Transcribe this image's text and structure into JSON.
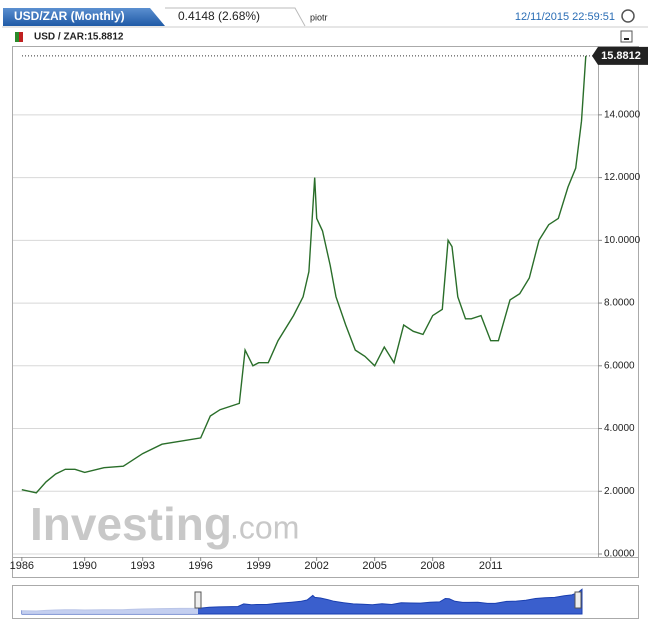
{
  "chart_data": {
    "type": "line",
    "tab_title": "USD/ZAR (Monthly)",
    "change": "0.4148 (2.68%)",
    "user": "piotr",
    "timestamp": "12/11/2015 22:59:51",
    "legend_label": "USD / ZAR:15.8812",
    "last_value": 15.8812,
    "watermark": "Investing",
    "watermark_suffix": ".com",
    "x": [
      1986.75,
      1987.5,
      1988,
      1988.5,
      1989,
      1989.5,
      1990,
      1991,
      1992,
      1993,
      1994,
      1995,
      1996,
      1996.5,
      1997,
      1998,
      1998.3,
      1998.7,
      1999,
      1999.5,
      2000,
      2000.8,
      2001.3,
      2001.6,
      2001.9,
      2002,
      2002.3,
      2002.7,
      2003,
      2003.5,
      2004,
      2004.5,
      2005,
      2005.5,
      2006,
      2006.5,
      2007,
      2007.5,
      2008,
      2008.5,
      2008.8,
      2009,
      2009.3,
      2009.7,
      2010,
      2010.5,
      2011,
      2011.4,
      2012,
      2012.5,
      2013,
      2013.5,
      2014,
      2014.5,
      2015,
      2015.4,
      2015.7,
      2015.92
    ],
    "series": [
      {
        "name": "USD / ZAR",
        "color": "#2a6e2a",
        "values": [
          2.05,
          1.95,
          2.3,
          2.55,
          2.7,
          2.7,
          2.6,
          2.75,
          2.8,
          3.2,
          3.5,
          3.6,
          3.7,
          4.4,
          4.6,
          4.8,
          6.5,
          6.0,
          6.1,
          6.1,
          6.8,
          7.6,
          8.2,
          9.0,
          12.0,
          10.7,
          10.3,
          9.2,
          8.2,
          7.3,
          6.5,
          6.3,
          6.0,
          6.6,
          6.1,
          7.3,
          7.1,
          7.0,
          7.6,
          7.8,
          10.0,
          9.8,
          8.2,
          7.5,
          7.5,
          7.6,
          6.8,
          6.8,
          8.1,
          8.3,
          8.8,
          10.0,
          10.5,
          10.7,
          11.7,
          12.3,
          13.8,
          15.8812
        ]
      }
    ],
    "xlim": [
      1986.5,
      2016.5
    ],
    "xticks": [
      {
        "value": 1986.75,
        "label": "1986"
      },
      1990,
      1993,
      1996,
      1999,
      2002,
      2005,
      2008,
      2011
    ],
    "ylim": [
      0,
      16.1
    ],
    "yticks": [
      {
        "value": 0,
        "label": "0.0000"
      },
      {
        "value": 2,
        "label": "2.0000"
      },
      {
        "value": 4,
        "label": "4.0000"
      },
      {
        "value": 6,
        "label": "6.0000"
      },
      {
        "value": 8,
        "label": "8.0000"
      },
      {
        "value": 10,
        "label": "10.0000"
      },
      {
        "value": 12,
        "label": "12.0000"
      },
      {
        "value": 14,
        "label": "14.0000"
      }
    ],
    "grid": true
  }
}
